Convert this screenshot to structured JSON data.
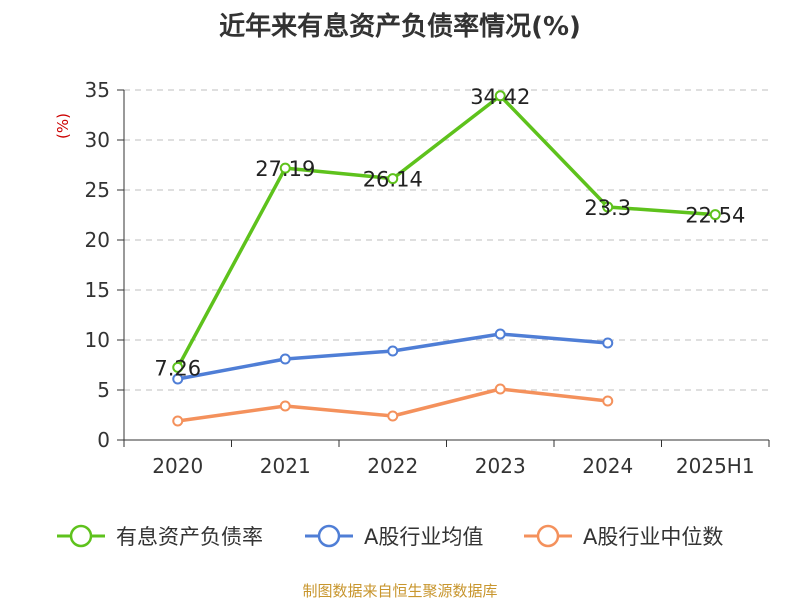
{
  "colors": {
    "series_0": "#5ec21c",
    "series_1": "#4f7ed6",
    "series_2": "#f4915c",
    "unit": "#cc0000",
    "source": "#c8962e",
    "axis": "#333333",
    "grid": "#cccccc"
  },
  "chart_data": {
    "type": "line",
    "title": "近年来有息资产负债率情况(%)",
    "ylabel": "(%)",
    "xlabel": "",
    "categories": [
      "2020",
      "2021",
      "2022",
      "2023",
      "2024",
      "2025H1"
    ],
    "ylim": [
      0,
      35
    ],
    "yticks": [
      0,
      5,
      10,
      15,
      20,
      25,
      30,
      35
    ],
    "grid": true,
    "legend_position": "bottom",
    "series": [
      {
        "name": "有息资产负债率",
        "values": [
          7.26,
          27.19,
          26.14,
          34.42,
          23.3,
          22.54
        ],
        "labels": [
          "7.26",
          "27.19",
          "26.14",
          "34.42",
          "23.3",
          "22.54"
        ]
      },
      {
        "name": "A股行业均值",
        "values": [
          6.1,
          8.1,
          8.9,
          10.6,
          9.7,
          null
        ]
      },
      {
        "name": "A股行业中位数",
        "values": [
          1.9,
          3.4,
          2.4,
          5.1,
          3.9,
          null
        ]
      }
    ]
  },
  "footer": {
    "source": "制图数据来自恒生聚源数据库"
  }
}
